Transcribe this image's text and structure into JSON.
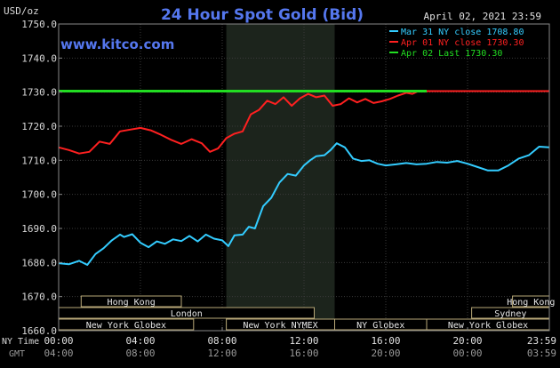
{
  "header": {
    "title": "24 Hour Spot Gold (Bid)",
    "units": "USD/oz",
    "date": "April 02, 2021 23:59",
    "brand": "www.kitco.com"
  },
  "legend": [
    {
      "label": "Mar 31 NY close 1708.80",
      "color": "#33ccff"
    },
    {
      "label": "Apr 01 NY close 1730.30",
      "color": "#ff2020"
    },
    {
      "label": "Apr 02 Last 1730.30",
      "color": "#22dd22"
    }
  ],
  "bottom": {
    "ny_label": "NY Time",
    "gmt_label": "GMT"
  },
  "chart_data": {
    "type": "line",
    "title": "24 Hour Spot Gold (Bid)",
    "ylabel": "USD/oz",
    "ylim": [
      1660,
      1750
    ],
    "xlim": [
      0,
      24
    ],
    "ny_ticks": [
      "00:00",
      "04:00",
      "08:00",
      "12:00",
      "16:00",
      "20:00",
      "23:59"
    ],
    "gmt_ticks": [
      "04:00",
      "08:00",
      "12:00",
      "16:00",
      "20:00",
      "00:00",
      "03:59"
    ],
    "y_ticks": [
      "1660.0",
      "1670.0",
      "1680.0",
      "1690.0",
      "1700.0",
      "1710.0",
      "1720.0",
      "1730.0",
      "1740.0",
      "1750.0"
    ],
    "highlight_hours": [
      8.2,
      13.5
    ],
    "market_sessions": [
      {
        "label": "Hong Kong",
        "start": 1.1,
        "end": 6.0,
        "row": 0
      },
      {
        "label": "Hong Kong",
        "start": 22.2,
        "end": 24,
        "row": 0
      },
      {
        "label": "London",
        "start": 0,
        "end": 12.5,
        "row": 1
      },
      {
        "label": "Sydney",
        "start": 20.2,
        "end": 24,
        "row": 1
      },
      {
        "label": "New York Globex",
        "start": 0,
        "end": 6.6,
        "row": 2
      },
      {
        "label": "New York NYMEX",
        "start": 8.2,
        "end": 13.5,
        "row": 2
      },
      {
        "label": "NY Globex",
        "start": 13.5,
        "end": 18.0,
        "row": 2
      },
      {
        "label": "New York Globex",
        "start": 18.0,
        "end": 24,
        "row": 2
      }
    ],
    "series": [
      {
        "name": "Mar 31 NY close 1708.80",
        "color": "#33ccff",
        "x": [
          0,
          0.5,
          1.0,
          1.4,
          1.8,
          2.2,
          2.6,
          3.0,
          3.2,
          3.6,
          4.0,
          4.4,
          4.8,
          5.2,
          5.6,
          6.0,
          6.4,
          6.8,
          7.2,
          7.6,
          8.0,
          8.3,
          8.6,
          9.0,
          9.3,
          9.6,
          10.0,
          10.4,
          10.8,
          11.2,
          11.6,
          12.0,
          12.3,
          12.6,
          13.0,
          13.3,
          13.6,
          14.0,
          14.4,
          14.8,
          15.2,
          15.6,
          16.0,
          16.5,
          17.0,
          17.5,
          18.0,
          18.5,
          19.0,
          19.5,
          20.0,
          20.5,
          21.0,
          21.5,
          22.0,
          22.5,
          23.0,
          23.5,
          23.99
        ],
        "y": [
          1679.8,
          1679.5,
          1680.5,
          1679.3,
          1682.5,
          1684.2,
          1686.5,
          1688.2,
          1687.5,
          1688.3,
          1685.8,
          1684.5,
          1686.2,
          1685.5,
          1686.8,
          1686.3,
          1687.8,
          1686.2,
          1688.2,
          1687.0,
          1686.5,
          1684.8,
          1688.0,
          1688.2,
          1690.5,
          1690.0,
          1696.5,
          1699.0,
          1703.5,
          1706.0,
          1705.5,
          1708.5,
          1710.0,
          1711.2,
          1711.5,
          1713.0,
          1715.0,
          1713.8,
          1710.5,
          1709.8,
          1710.0,
          1709.0,
          1708.5,
          1708.8,
          1709.2,
          1708.8,
          1709.0,
          1709.5,
          1709.3,
          1709.8,
          1709.0,
          1708.0,
          1707.0,
          1707.0,
          1708.5,
          1710.5,
          1711.5,
          1714.0,
          1713.8
        ]
      },
      {
        "name": "Apr 01 NY close 1730.30",
        "color": "#ff2020",
        "x": [
          0,
          0.5,
          1.0,
          1.5,
          2.0,
          2.5,
          3.0,
          3.5,
          4.0,
          4.5,
          5.0,
          5.5,
          6.0,
          6.5,
          7.0,
          7.4,
          7.8,
          8.2,
          8.6,
          9.0,
          9.4,
          9.8,
          10.2,
          10.6,
          11.0,
          11.4,
          11.8,
          12.2,
          12.6,
          13.0,
          13.4,
          13.8,
          14.2,
          14.6,
          15.0,
          15.4,
          15.8,
          16.2,
          16.6,
          17.0,
          17.3,
          17.6,
          18.0,
          19.0,
          20.0,
          21.0,
          22.0,
          23.0,
          24.0
        ],
        "y": [
          1713.8,
          1713.0,
          1712.0,
          1712.5,
          1715.5,
          1714.8,
          1718.5,
          1719.0,
          1719.5,
          1718.8,
          1717.5,
          1716.0,
          1714.8,
          1716.2,
          1715.0,
          1712.5,
          1713.5,
          1716.5,
          1717.8,
          1718.5,
          1723.5,
          1724.8,
          1727.5,
          1726.5,
          1728.5,
          1726.0,
          1728.2,
          1729.5,
          1728.5,
          1729.0,
          1726.0,
          1726.5,
          1728.2,
          1727.0,
          1728.0,
          1726.8,
          1727.3,
          1728.0,
          1729.0,
          1729.8,
          1729.5,
          1730.3,
          1730.3,
          1730.3,
          1730.3,
          1730.3,
          1730.3,
          1730.3,
          1730.3
        ]
      },
      {
        "name": "Apr 02 Last 1730.30",
        "color": "#22dd22",
        "x": [
          0,
          18.0
        ],
        "y": [
          1730.3,
          1730.3
        ]
      }
    ]
  }
}
